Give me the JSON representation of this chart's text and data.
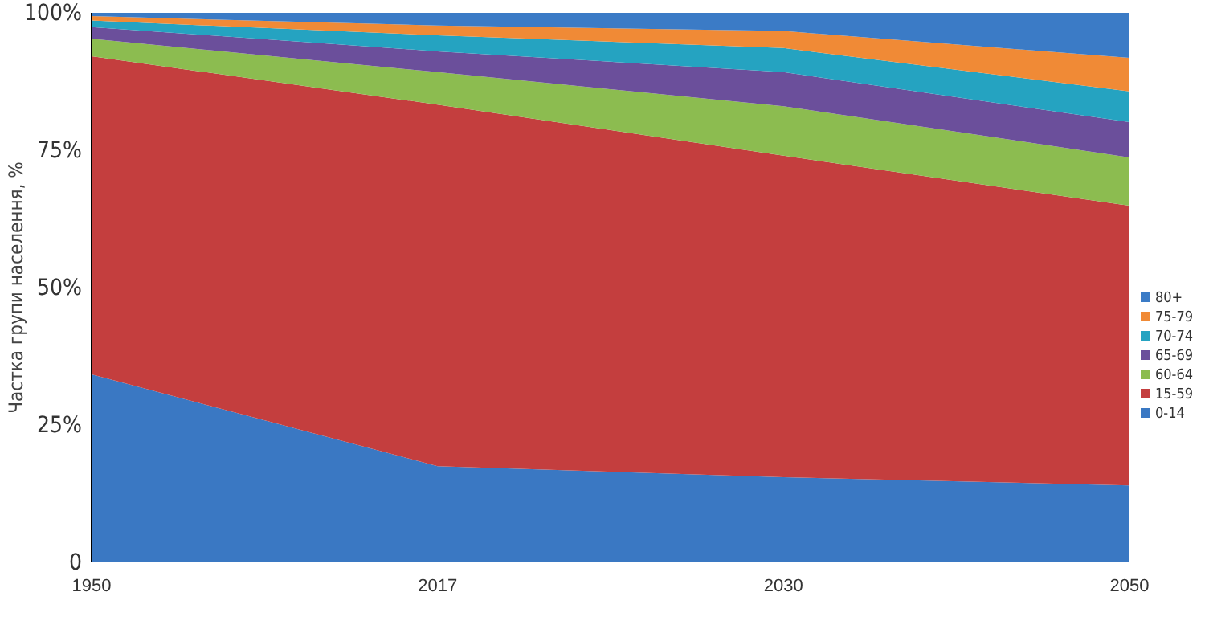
{
  "chart_data": {
    "type": "area",
    "stacked": true,
    "ylabel": "Частка групи населення, %",
    "categories": [
      "1950",
      "2017",
      "2030",
      "2050"
    ],
    "series": [
      {
        "name": "0-14",
        "color": "#3a78c3",
        "values": [
          34.2,
          17.5,
          15.5,
          14.0
        ]
      },
      {
        "name": "15-59",
        "color": "#c43e3e",
        "values": [
          57.9,
          65.8,
          58.5,
          50.9
        ]
      },
      {
        "name": "60-64",
        "color": "#8cbc50",
        "values": [
          3.2,
          5.9,
          9.0,
          8.8
        ]
      },
      {
        "name": "65-69",
        "color": "#6b4f9b",
        "values": [
          2.1,
          3.8,
          6.2,
          6.4
        ]
      },
      {
        "name": "70-74",
        "color": "#25a3c1",
        "values": [
          1.2,
          2.9,
          4.4,
          5.6
        ]
      },
      {
        "name": "75-79",
        "color": "#f08a36",
        "values": [
          0.8,
          1.8,
          3.1,
          6.1
        ]
      },
      {
        "name": "80+",
        "color": "#3b7bc6",
        "values": [
          0.6,
          2.3,
          3.3,
          8.2
        ]
      }
    ],
    "ylim": [
      0,
      100
    ],
    "yticks": [
      0,
      {
        "value": 25,
        "label": "25%"
      },
      {
        "value": 50,
        "label": "50%"
      },
      {
        "value": 75,
        "label": "75%"
      },
      {
        "value": 100,
        "label": "100%"
      }
    ],
    "legend": "right",
    "grid": false
  }
}
